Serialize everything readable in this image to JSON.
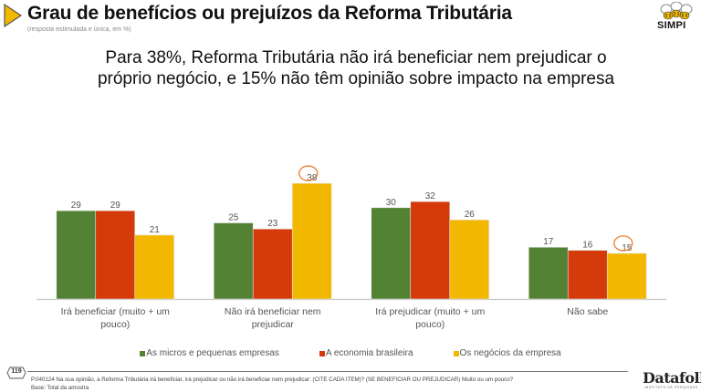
{
  "header": {
    "title": "Grau de benefícios ou prejuízos da Reforma Tributária",
    "subtitle": "(resposta estimulada e única, em %)",
    "brand_logo": "SIMPI",
    "headline_line1": "Para 38%, Reforma Tributária não irá beneficiar nem prejudicar o",
    "headline_line2": "próprio negócio, e 15% não têm opinião sobre impacto na empresa"
  },
  "chart_data": {
    "type": "bar",
    "title": "Grau de benefícios ou prejuízos da Reforma Tributária",
    "xlabel": "",
    "ylabel": "%",
    "ylim": [
      0,
      40
    ],
    "grid": false,
    "legend_position": "bottom",
    "categories": [
      "Irá beneficiar (muito + um pouco)",
      "Não irá beneficiar nem prejudicar",
      "Irá prejudicar (muito + um pouco)",
      "Não sabe"
    ],
    "category_lines": [
      [
        "Irá beneficiar (muito + um",
        "pouco)"
      ],
      [
        "Não irá beneficiar nem",
        "prejudicar"
      ],
      [
        "Irá prejudicar (muito + um",
        "pouco)"
      ],
      [
        "Não sabe"
      ]
    ],
    "series": [
      {
        "name": "As micros e pequenas empresas",
        "color": "#548235",
        "values": [
          29,
          25,
          30,
          17
        ]
      },
      {
        "name": "A economia brasileira",
        "color": "#D43A0A",
        "values": [
          29,
          23,
          32,
          16
        ]
      },
      {
        "name": "Os negócios da empresa",
        "color": "#F2B800",
        "values": [
          21,
          38,
          26,
          15
        ]
      }
    ],
    "annotations": [
      {
        "type": "circle-highlight",
        "series": "Os negócios da empresa",
        "category": "Não irá beneficiar nem prejudicar",
        "value": 38,
        "color": "#ED7D31"
      },
      {
        "type": "circle-highlight",
        "series": "Os negócios da empresa",
        "category": "Não sabe",
        "value": 15,
        "color": "#ED7D31"
      }
    ]
  },
  "footer": {
    "page_number": "119",
    "question": "P.040124 Na sua opinião, a Reforma Tributária irá beneficiar, irá prejudicar ou não irá beneficiar nem prejudicar: (CITE CADA ITEM)? (SE BENEFICIAR OU PREJUDICAR) Muito ou um pouco?",
    "base": "Base: Total da amostra",
    "source_logo": "Datafolha",
    "source_logo_sub": "INSTITUTO DE PESQUISAS"
  }
}
